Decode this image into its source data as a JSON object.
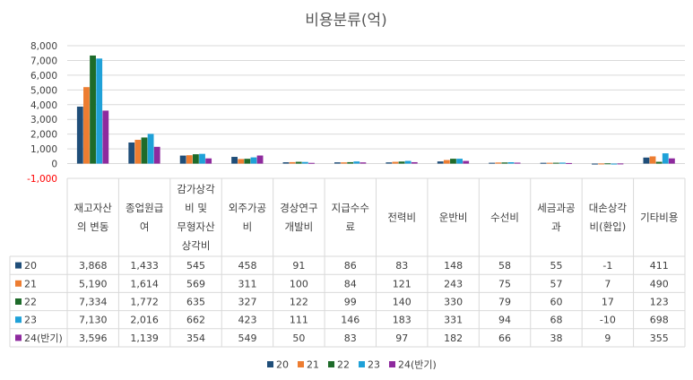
{
  "chart_data": {
    "type": "bar",
    "title": "비용분류(억)",
    "categories": [
      [
        "재고자산",
        "의 변동"
      ],
      [
        "종업원급",
        "여"
      ],
      [
        "감가상각",
        "비 및",
        "무형자산",
        "상각비"
      ],
      [
        "외주가공",
        "비"
      ],
      [
        "경상연구",
        "개발비"
      ],
      [
        "지급수수",
        "료"
      ],
      [
        "전력비"
      ],
      [
        "운반비"
      ],
      [
        "수선비"
      ],
      [
        "세금과공",
        "과"
      ],
      [
        "대손상각",
        "비(환입)"
      ],
      [
        "기타비용"
      ]
    ],
    "series": [
      {
        "name": "20",
        "color": "#1f4e79",
        "values": [
          3868,
          1433,
          545,
          458,
          91,
          86,
          83,
          148,
          58,
          55,
          -1,
          411
        ]
      },
      {
        "name": "21",
        "color": "#ed7d31",
        "values": [
          5190,
          1614,
          569,
          311,
          100,
          84,
          121,
          243,
          75,
          57,
          7,
          490
        ]
      },
      {
        "name": "22",
        "color": "#1e6b2a",
        "values": [
          7334,
          1772,
          635,
          327,
          122,
          99,
          140,
          330,
          79,
          60,
          17,
          123
        ]
      },
      {
        "name": "23",
        "color": "#1fa1d8",
        "values": [
          7130,
          2016,
          662,
          423,
          111,
          146,
          183,
          331,
          94,
          68,
          -10,
          698
        ]
      },
      {
        "name": "24(반기)",
        "color": "#8e2a9e",
        "values": [
          3596,
          1139,
          354,
          549,
          50,
          83,
          97,
          182,
          66,
          38,
          9,
          355
        ]
      }
    ],
    "display_values": [
      [
        "3,868",
        "1,433",
        "545",
        "458",
        "91",
        "86",
        "83",
        "148",
        "58",
        "55",
        "-1",
        "411"
      ],
      [
        "5,190",
        "1,614",
        "569",
        "311",
        "100",
        "84",
        "121",
        "243",
        "75",
        "57",
        "7",
        "490"
      ],
      [
        "7,334",
        "1,772",
        "635",
        "327",
        "122",
        "99",
        "140",
        "330",
        "79",
        "60",
        "17",
        "123"
      ],
      [
        "7,130",
        "2,016",
        "662",
        "423",
        "111",
        "146",
        "183",
        "331",
        "94",
        "68",
        "-10",
        "698"
      ],
      [
        "3,596",
        "1,139",
        "354",
        "549",
        "50",
        "83",
        "97",
        "182",
        "66",
        "38",
        "9",
        "355"
      ]
    ],
    "y_ticks": [
      "8,000",
      "7,000",
      "6,000",
      "5,000",
      "4,000",
      "3,000",
      "2,000",
      "1,000",
      "0",
      "-1,000"
    ],
    "ylim": [
      -1000,
      8000
    ],
    "legend_position": "bottom",
    "data_table": true,
    "grid": true
  }
}
